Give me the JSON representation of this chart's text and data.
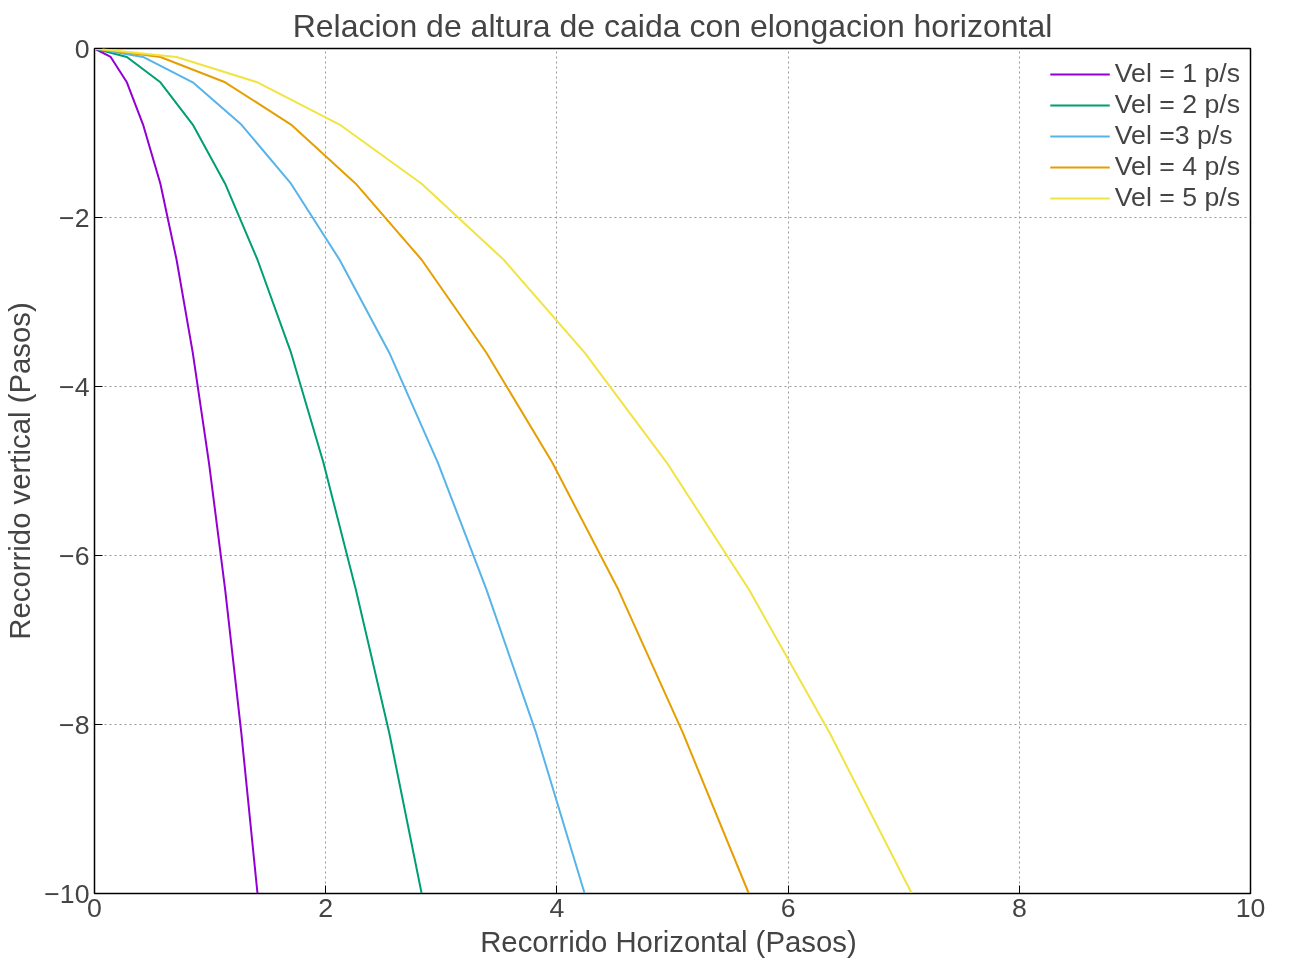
{
  "chart_data": {
    "type": "line",
    "title": "Relacion de altura de caida con elongacion horizontal",
    "xlabel": "Recorrido Horizontal  (Pasos)",
    "ylabel": "Recorrido vertical (Pasos)",
    "xlim": [
      0,
      10
    ],
    "ylim": [
      -10,
      0
    ],
    "xticks": [
      0,
      2,
      4,
      6,
      8,
      10
    ],
    "yticks": [
      -10,
      -8,
      -6,
      -4,
      -2,
      0
    ],
    "grid": true,
    "legend": "top right",
    "line_style": "solid",
    "series": [
      {
        "name": "Vel = 1 p/s",
        "color": "#9400d3",
        "x": [
          0,
          0.14,
          0.28,
          0.42,
          0.57,
          0.71,
          0.85,
          0.99,
          1.13,
          1.27,
          1.41
        ],
        "values": [
          0,
          -0.1,
          -0.4,
          -0.9,
          -1.6,
          -2.5,
          -3.6,
          -4.9,
          -6.4,
          -8.1,
          -10
        ]
      },
      {
        "name": "Vel = 2 p/s",
        "color": "#009e73",
        "x": [
          0,
          0.28,
          0.57,
          0.85,
          1.13,
          1.41,
          1.7,
          1.98,
          2.26,
          2.55,
          2.83
        ],
        "values": [
          0,
          -0.1,
          -0.4,
          -0.9,
          -1.6,
          -2.5,
          -3.6,
          -4.9,
          -6.4,
          -8.1,
          -10
        ]
      },
      {
        "name": "Vel =3 p/s",
        "color": "#56b4e9",
        "x": [
          0,
          0.42,
          0.85,
          1.27,
          1.7,
          2.12,
          2.55,
          2.97,
          3.39,
          3.82,
          4.24
        ],
        "values": [
          0,
          -0.1,
          -0.4,
          -0.9,
          -1.6,
          -2.5,
          -3.6,
          -4.9,
          -6.4,
          -8.1,
          -10
        ]
      },
      {
        "name": "Vel = 4 p/s",
        "color": "#e69f00",
        "x": [
          0,
          0.57,
          1.13,
          1.7,
          2.26,
          2.83,
          3.39,
          3.96,
          4.53,
          5.09,
          5.66
        ],
        "values": [
          0,
          -0.1,
          -0.4,
          -0.9,
          -1.6,
          -2.5,
          -3.6,
          -4.9,
          -6.4,
          -8.1,
          -10
        ]
      },
      {
        "name": "Vel = 5 p/s",
        "color": "#f0e442",
        "x": [
          0,
          0.71,
          1.41,
          2.12,
          2.83,
          3.54,
          4.24,
          4.95,
          5.66,
          6.36,
          7.07
        ],
        "values": [
          0,
          -0.1,
          -0.4,
          -0.9,
          -1.6,
          -2.5,
          -3.6,
          -4.9,
          -6.4,
          -8.1,
          -10
        ]
      }
    ]
  }
}
